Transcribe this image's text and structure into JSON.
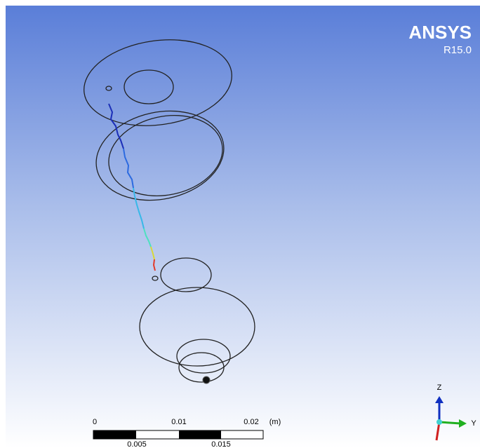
{
  "logo": {
    "brand": "ANSYS",
    "version": "R15.0"
  },
  "scale_bar": {
    "top_labels": [
      "0",
      "0.01",
      "0.02"
    ],
    "unit": "(m)",
    "bottom_labels": [
      "0.005",
      "0.015"
    ]
  },
  "triad": {
    "z": "Z",
    "y": "Y"
  }
}
